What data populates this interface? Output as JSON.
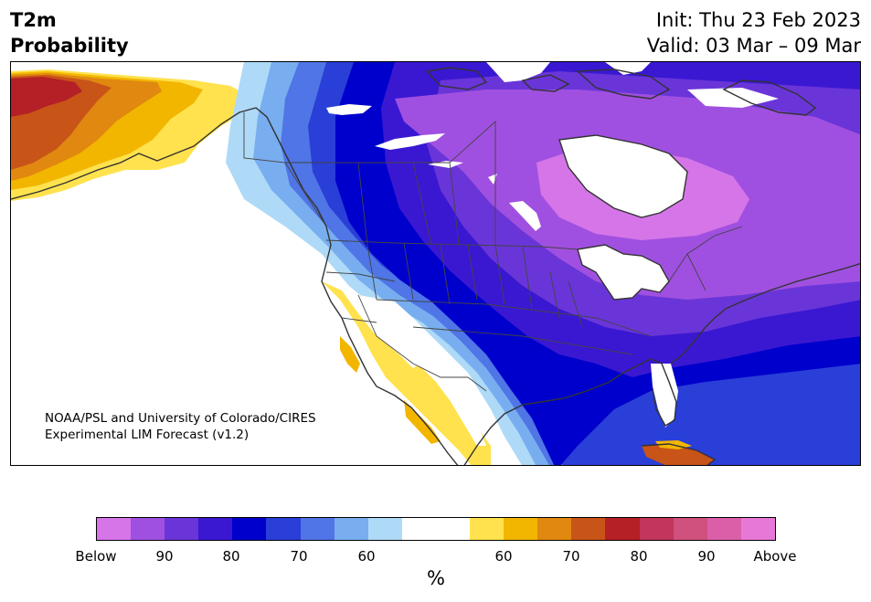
{
  "header": {
    "title_line1": "T2m",
    "title_line2": "Probability",
    "init": "Init: Thu 23 Feb 2023",
    "valid": "Valid: 03 Mar – 09 Mar"
  },
  "credit": {
    "line1": "NOAA/PSL and University of Colorado/CIRES",
    "line2": "Experimental LIM Forecast (v1.2)"
  },
  "colorbar": {
    "colors": [
      "#d575e8",
      "#a050e0",
      "#6a35d8",
      "#3a18d2",
      "#0000cc",
      "#2a3ed8",
      "#4f75e6",
      "#78aef0",
      "#aedaf8",
      "#ffffff",
      "#ffffff",
      "#ffe24d",
      "#f2b600",
      "#e08810",
      "#c85418",
      "#b42025",
      "#c3355a",
      "#d0507e",
      "#da5fa8",
      "#e878d8"
    ],
    "tick_labels": [
      "Below",
      "90",
      "80",
      "70",
      "60",
      "60",
      "70",
      "80",
      "90",
      "Above"
    ],
    "unit": "%"
  },
  "map": {
    "region": "North America",
    "below_colors": {
      "b90": "#d575e8",
      "b80": "#a050e0",
      "b70": "#6a35d8",
      "b65": "#3a18d2",
      "b60": "#0000cc",
      "b55": "#2a3ed8",
      "b50": "#4f75e6",
      "b45": "#78aef0",
      "b40": "#aedaf8"
    },
    "above_colors": {
      "a40": "#ffe24d",
      "a45": "#f2b600",
      "a50": "#e08810",
      "a55": "#c85418",
      "a60": "#b42025"
    }
  }
}
